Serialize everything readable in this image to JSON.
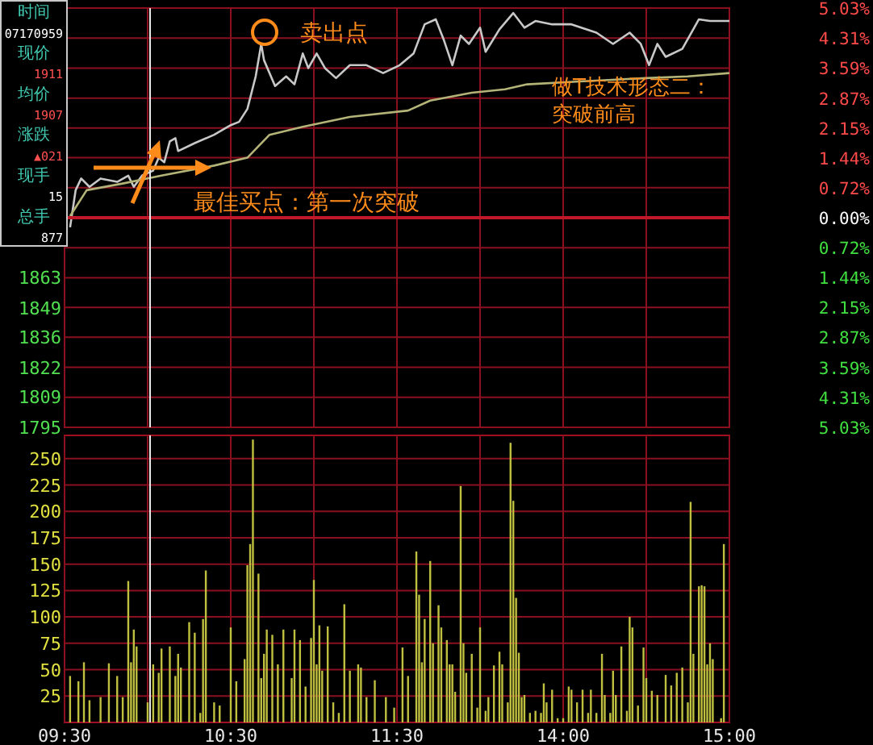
{
  "chart_data": [
    {
      "type": "line",
      "categories": [
        null,
        null,
        null,
        null,
        null,
        null,
        null,
        null,
        null,
        null,
        null,
        null,
        null,
        null,
        null,
        null,
        null,
        null,
        null,
        null,
        null,
        null,
        null,
        null,
        null,
        null,
        null,
        null,
        null,
        null,
        null,
        null,
        null,
        null,
        null,
        null,
        null,
        null,
        null,
        null,
        null,
        null,
        null,
        null,
        null,
        null,
        null,
        null,
        null,
        null,
        null,
        null,
        null,
        null,
        null,
        null,
        null,
        null,
        null,
        null,
        null,
        null,
        null,
        null,
        null,
        null,
        null,
        null,
        null,
        null,
        null,
        null,
        null,
        null,
        null,
        null,
        null,
        null,
        null,
        null,
        null,
        null,
        null,
        null,
        null,
        null,
        null,
        null,
        null,
        null,
        null,
        null,
        null,
        null,
        null,
        null,
        null,
        null,
        null,
        null,
        null,
        null,
        null,
        null,
        null,
        null,
        null,
        null,
        null,
        null,
        null,
        null,
        null,
        null,
        null,
        null,
        null,
        null,
        null,
        null,
        null,
        null,
        null,
        null,
        null,
        null,
        null,
        null,
        null,
        null,
        null,
        null,
        null,
        null,
        null,
        null,
        null,
        null,
        null,
        null,
        null,
        null,
        null,
        null,
        null,
        null,
        null,
        null,
        null,
        null,
        null,
        null,
        null,
        null,
        null,
        null,
        null,
        null,
        null,
        null,
        null,
        null,
        null,
        null,
        null,
        null,
        null,
        null,
        null,
        null,
        null,
        null,
        null,
        null,
        null,
        null,
        null,
        null,
        null,
        null,
        null,
        null,
        null,
        null,
        null,
        null,
        null,
        null,
        null,
        null,
        null,
        null,
        null,
        null,
        null,
        null,
        null,
        null,
        null,
        null,
        null,
        null,
        null,
        null,
        null,
        null,
        null,
        null,
        null,
        null,
        null,
        null,
        null,
        null,
        null,
        null,
        null,
        null,
        null,
        null,
        null,
        null,
        null,
        null,
        null,
        null,
        null,
        null,
        null,
        null,
        null,
        null,
        null,
        null,
        null,
        null,
        null,
        null,
        null,
        null,
        null
      ],
      "series": [
        {
          "color": "#c8c8c8",
          "axis": "y2",
          "values": [
            null,
            null,
            -0.23,
            null,
            0.66,
            null,
            0.94,
            null,
            null,
            0.74,
            null,
            null,
            null,
            0.94,
            null,
            null,
            null,
            null,
            null,
            0.86,
            null,
            null,
            null,
            1.01,
            null,
            0.74,
            null,
            null,
            1.01,
            null,
            null,
            null,
            1.13,
            null,
            1.44,
            null,
            1.33,
            null,
            1.83,
            null,
            1.91,
            1.6,
            null,
            null,
            null,
            null,
            null,
            1.79,
            null,
            null,
            null,
            null,
            null,
            null,
            1.99,
            null,
            null,
            null,
            null,
            null,
            2.22,
            null,
            null,
            2.3,
            null,
            null,
            2.61,
            null,
            null,
            3.39,
            null,
            4.17,
            3.78,
            null,
            null,
            null,
            3.16,
            null,
            null,
            null,
            3.39,
            null,
            null,
            3.2,
            null,
            null,
            3.94,
            null,
            3.59,
            null,
            null,
            3.94,
            null,
            null,
            3.59,
            null,
            null,
            null,
            3.35,
            null,
            null,
            null,
            null,
            3.66,
            null,
            null,
            null,
            null,
            null,
            3.66,
            null,
            null,
            null,
            null,
            null,
            3.47,
            null,
            null,
            null,
            null,
            null,
            3.66,
            null,
            null,
            null,
            null,
            3.94,
            null,
            null,
            null,
            4.64,
            null,
            null,
            null,
            4.76,
            null,
            null,
            4.25,
            null,
            null,
            3.66,
            null,
            null,
            4.37,
            null,
            null,
            4.17,
            null,
            null,
            null,
            4.56,
            null,
            3.98,
            null,
            null,
            null,
            null,
            4.52,
            null,
            null,
            null,
            null,
            4.91,
            null,
            null,
            null,
            4.56,
            null,
            null,
            null,
            4.72,
            null,
            null,
            null,
            null,
            null,
            4.64,
            null,
            null,
            null,
            null,
            null,
            null,
            4.64,
            null,
            null,
            null,
            null,
            null,
            null,
            null,
            null,
            4.44,
            null,
            null,
            null,
            null,
            null,
            4.17,
            null,
            null,
            null,
            null,
            null,
            4.44,
            null,
            null,
            null,
            4.17,
            null,
            null,
            3.66,
            null,
            null,
            4.17,
            null,
            null,
            3.86,
            null,
            null,
            null,
            null,
            null,
            4.05,
            null,
            null,
            null,
            null,
            null,
            4.76,
            null,
            null,
            null,
            4.72,
            null,
            null,
            null,
            null,
            null,
            null,
            4.72
          ]
        },
        {
          "color": "#b4b478",
          "axis": "y2",
          "values": [
            null,
            null,
            0.04,
            null,
            null,
            null,
            null,
            null,
            0.66,
            null,
            null,
            null,
            null,
            null,
            null,
            null,
            null,
            null,
            null,
            null,
            null,
            0.82,
            null,
            null,
            null,
            null,
            null,
            null,
            null,
            null,
            null,
            null,
            null,
            null,
            null,
            1.01,
            null,
            null,
            null,
            null,
            null,
            null,
            null,
            null,
            null,
            null,
            null,
            null,
            null,
            null,
            null,
            null,
            null,
            null,
            1.25,
            null,
            null,
            null,
            null,
            null,
            null,
            null,
            null,
            null,
            null,
            null,
            1.44,
            null,
            null,
            null,
            null,
            null,
            null,
            null,
            1.99,
            null,
            null,
            null,
            null,
            null,
            null,
            null,
            null,
            null,
            null,
            null,
            2.18,
            null,
            null,
            null,
            null,
            null,
            null,
            null,
            null,
            null,
            null,
            null,
            null,
            null,
            null,
            null,
            null,
            2.42,
            null,
            null,
            null,
            null,
            null,
            null,
            null,
            null,
            null,
            null,
            null,
            null,
            null,
            null,
            null,
            null,
            null,
            null,
            null,
            null,
            2.57,
            null,
            null,
            null,
            null,
            null,
            null,
            null,
            2.81,
            null,
            null,
            null,
            null,
            null,
            null,
            null,
            null,
            null,
            null,
            null,
            null,
            null,
            null,
            3.0,
            null,
            null,
            null,
            null,
            null,
            null,
            null,
            null,
            null,
            null,
            null,
            3.08,
            null,
            null,
            null,
            null,
            null,
            null,
            null,
            3.2,
            null,
            null,
            null,
            null,
            null,
            null,
            null,
            null,
            null,
            null,
            null,
            null,
            null,
            null,
            null,
            null,
            null,
            null,
            3.27,
            null,
            null,
            null,
            null,
            null,
            null,
            null,
            null,
            null,
            null,
            null,
            null,
            null,
            null,
            null,
            null,
            null,
            null,
            null,
            null,
            null,
            null,
            null,
            3.35,
            null,
            null,
            null,
            null,
            null,
            null,
            null,
            null,
            null,
            null,
            null,
            null,
            null,
            null,
            3.39,
            null,
            null,
            null,
            null,
            null,
            null,
            null,
            null,
            null,
            null,
            null,
            null,
            null,
            null,
            3.47
          ]
        }
      ],
      "ylim": [
        1795,
        1985
      ],
      "yticks": [
        1795,
        1809,
        1822,
        1836,
        1849,
        1863
      ],
      "y2lim": [
        -5.03,
        5.03
      ],
      "y2ticks": [
        {
          "value": 5.03,
          "label": "5.03%"
        },
        {
          "value": 4.31,
          "label": "4.31%"
        },
        {
          "value": 3.59,
          "label": "3.59%"
        },
        {
          "value": 2.87,
          "label": "2.87%"
        },
        {
          "value": 2.15,
          "label": "2.15%"
        },
        {
          "value": 1.44,
          "label": "1.44%"
        },
        {
          "value": 0.72,
          "label": "0.72%"
        },
        {
          "value": 0,
          "label": "0.00%"
        },
        {
          "value": -0.72,
          "label": "0.72%"
        },
        {
          "value": -1.44,
          "label": "1.44%"
        },
        {
          "value": -2.15,
          "label": "2.15%"
        },
        {
          "value": -2.87,
          "label": "2.87%"
        },
        {
          "value": -3.59,
          "label": "3.59%"
        },
        {
          "value": -4.31,
          "label": "4.31%"
        },
        {
          "value": -5.03,
          "label": "5.03%"
        }
      ],
      "grid": true,
      "tick_labels": "y",
      "ref_lines": [
        {
          "axis": "y2",
          "value": 0,
          "color": "#c01828"
        }
      ],
      "annotations": [
        "时间",
        "07170959",
        "现价",
        "1911",
        "均价",
        "1907",
        "涨跌",
        "▲021",
        "现手",
        "15",
        "总手",
        "877",
        "做T技术形态二：突破前高",
        "卖出点",
        "最佳买点：第一次突破"
      ]
    },
    {
      "type": "bar",
      "color": "#c0c040",
      "categories": [
        "09:30",
        null,
        null,
        null,
        null,
        null,
        null,
        null,
        null,
        null,
        null,
        null,
        null,
        null,
        null,
        null,
        null,
        null,
        null,
        null,
        null,
        null,
        null,
        null,
        null,
        null,
        null,
        null,
        null,
        null,
        null,
        null,
        null,
        null,
        null,
        null,
        null,
        null,
        null,
        null,
        null,
        null,
        null,
        null,
        null,
        null,
        null,
        null,
        null,
        null,
        null,
        null,
        null,
        null,
        null,
        null,
        null,
        null,
        null,
        null,
        "10:30",
        null,
        null,
        null,
        null,
        null,
        null,
        null,
        null,
        null,
        null,
        null,
        null,
        null,
        null,
        null,
        null,
        null,
        null,
        null,
        null,
        null,
        null,
        null,
        null,
        null,
        null,
        null,
        null,
        null,
        null,
        null,
        null,
        null,
        null,
        null,
        null,
        null,
        null,
        null,
        null,
        null,
        null,
        null,
        null,
        null,
        null,
        null,
        null,
        null,
        null,
        null,
        null,
        null,
        null,
        null,
        null,
        null,
        null,
        null,
        "11:30",
        null,
        null,
        null,
        null,
        null,
        null,
        null,
        null,
        null,
        null,
        null,
        null,
        null,
        null,
        null,
        null,
        null,
        null,
        null,
        null,
        null,
        null,
        null,
        null,
        null,
        null,
        null,
        null,
        null,
        null,
        null,
        null,
        null,
        null,
        null,
        null,
        null,
        null,
        null,
        null,
        null,
        null,
        null,
        null,
        null,
        null,
        null,
        null,
        null,
        null,
        null,
        null,
        null,
        null,
        null,
        null,
        null,
        null,
        null,
        "14:00",
        null,
        null,
        null,
        null,
        null,
        null,
        null,
        null,
        null,
        null,
        null,
        null,
        null,
        null,
        null,
        null,
        null,
        null,
        null,
        null,
        null,
        null,
        null,
        null,
        null,
        null,
        null,
        null,
        null,
        null,
        null,
        null,
        null,
        null,
        null,
        null,
        null,
        null,
        null,
        null,
        null,
        null,
        null,
        null,
        null,
        null,
        null,
        null,
        null,
        null,
        null,
        null,
        null,
        null,
        null,
        null,
        null,
        null,
        null,
        "15:00"
      ],
      "values": [
        null,
        null,
        44,
        null,
        null,
        39,
        null,
        57,
        null,
        21,
        null,
        null,
        null,
        24,
        null,
        null,
        56,
        null,
        null,
        44,
        null,
        24,
        null,
        134,
        57,
        88,
        72,
        null,
        null,
        null,
        19,
        null,
        55,
        null,
        47,
        70,
        null,
        null,
        72,
        null,
        44,
        65,
        52,
        null,
        null,
        95,
        null,
        85,
        null,
        9,
        98,
        144,
        null,
        null,
        19,
        null,
        16,
        null,
        null,
        null,
        90,
        null,
        39,
        null,
        null,
        60,
        149,
        169,
        268,
        null,
        141,
        42,
        65,
        88,
        null,
        83,
        null,
        55,
        null,
        88,
        null,
        null,
        42,
        88,
        null,
        78,
        null,
        34,
        null,
        80,
        135,
        55,
        92,
        49,
        null,
        91,
        null,
        19,
        null,
        9,
        null,
        112,
        null,
        49,
        null,
        null,
        55,
        52,
        null,
        24,
        null,
        null,
        40,
        null,
        null,
        null,
        24,
        null,
        null,
        14,
        null,
        null,
        71,
        null,
        44,
        null,
        null,
        162,
        121,
        57,
        98,
        null,
        153,
        75,
        null,
        111,
        90,
        null,
        78,
        55,
        55,
        29,
        null,
        224,
        75,
        47,
        null,
        65,
        null,
        14,
        90,
        null,
        11,
        24,
        null,
        54,
        null,
        67,
        55,
        null,
        19,
        265,
        210,
        118,
        66,
        24,
        26,
        null,
        9,
        null,
        11,
        null,
        9,
        37,
        19,
        null,
        31,
        null,
        4,
        null,
        4,
        null,
        34,
        31,
        null,
        19,
        null,
        31,
        null,
        9,
        31,
        null,
        9,
        null,
        65,
        26,
        null,
        9,
        49,
        26,
        null,
        72,
        null,
        11,
        100,
        90,
        null,
        16,
        null,
        71,
        42,
        null,
        30,
        null,
        26,
        null,
        null,
        45,
        null,
        35,
        null,
        47,
        null,
        52,
        null,
        19,
        209,
        65,
        null,
        129,
        130,
        129,
        55,
        75,
        60,
        null,
        null,
        4,
        169,
        null,
        null
      ],
      "ylim": [
        0,
        272
      ],
      "yticks": [
        25,
        50,
        75,
        100,
        125,
        150,
        175,
        200,
        225,
        250
      ],
      "grid": true
    }
  ]
}
